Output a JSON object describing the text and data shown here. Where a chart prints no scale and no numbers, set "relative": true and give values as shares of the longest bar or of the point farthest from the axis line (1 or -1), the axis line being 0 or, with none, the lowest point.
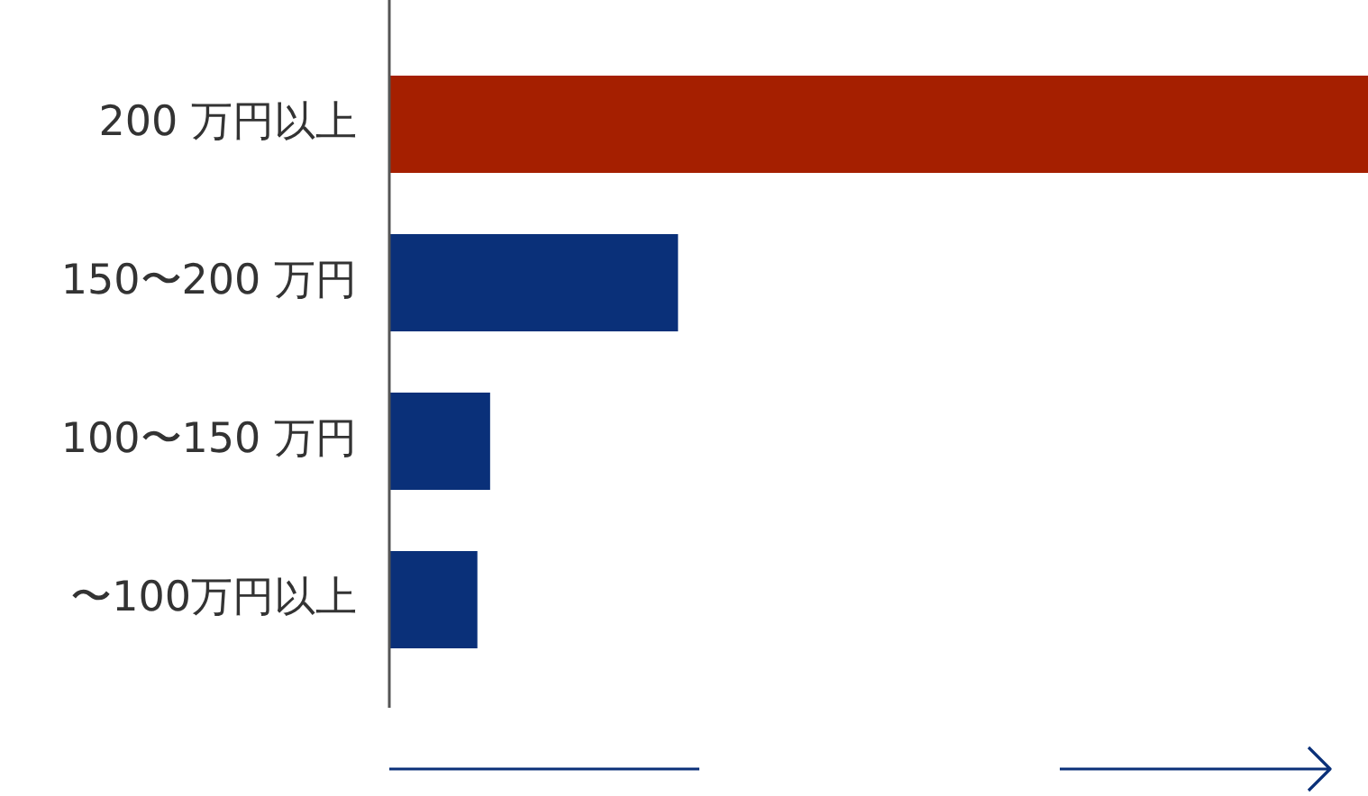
{
  "chart_data": {
    "type": "bar",
    "orientation": "horizontal",
    "relative": true,
    "categories": [
      "200 万円以上",
      "150〜200 万円",
      "100〜150 万円",
      "〜100万円以上"
    ],
    "values": [
      1,
      0.295,
      0.103,
      0.09
    ],
    "colors": [
      "#a51f00",
      "#0a3079",
      "#0a3079",
      "#0a3079"
    ],
    "legend": false
  }
}
